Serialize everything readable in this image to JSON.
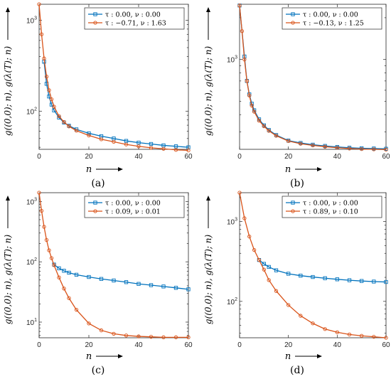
{
  "chart_data": [
    {
      "panel_label": "(a)",
      "type": "line",
      "x_scale": "linear",
      "y_scale": "log",
      "xlim": [
        0,
        60
      ],
      "ylim": [
        38,
        1500
      ],
      "xticks": [
        0,
        20,
        40,
        60
      ],
      "yticks": [
        {
          "value": 100,
          "label": "10^2"
        },
        {
          "value": 1000,
          "label": "10^3"
        }
      ],
      "xlabel": "n",
      "ylabel": "g((0,0); n), g(λ(T); n)",
      "legend_position": "top-right",
      "series": [
        {
          "name": "τ : 0.00, ν : 0.00",
          "color": "#0072BD",
          "marker": "square",
          "x": [
            2,
            3,
            4,
            5,
            6,
            8,
            10,
            12,
            15,
            20,
            25,
            30,
            35,
            40,
            45,
            50,
            55,
            60
          ],
          "y": [
            350,
            200,
            145,
            118,
            102,
            85,
            75,
            69,
            63,
            57,
            53,
            50,
            47,
            45,
            43.5,
            42,
            41,
            40
          ]
        },
        {
          "name": "τ : −0.71, ν : 1.63",
          "color": "#D95319",
          "marker": "circle",
          "x": [
            0,
            1,
            2,
            3,
            4,
            5,
            6,
            8,
            10,
            12,
            15,
            20,
            25,
            30,
            35,
            40,
            45,
            50,
            55,
            60
          ],
          "y": [
            1500,
            700,
            380,
            240,
            170,
            135,
            112,
            88,
            76,
            68,
            61,
            54,
            49,
            46,
            43,
            41,
            39.5,
            38.5,
            37.5,
            37
          ]
        }
      ]
    },
    {
      "panel_label": "(b)",
      "type": "line",
      "x_scale": "linear",
      "y_scale": "log",
      "xlim": [
        0,
        60
      ],
      "ylim": [
        225,
        2500
      ],
      "xticks": [
        0,
        20,
        40,
        60
      ],
      "yticks": [
        {
          "value": 1000,
          "label": "10^3"
        }
      ],
      "xlabel": "n",
      "ylabel": "g((0,0); n), g(λ(T); n)",
      "legend_position": "top-right",
      "series": [
        {
          "name": "τ : 0.00, ν : 0.00",
          "color": "#0072BD",
          "marker": "square",
          "x": [
            0,
            2,
            3,
            4,
            5,
            6,
            8,
            10,
            12,
            15,
            20,
            25,
            30,
            35,
            40,
            45,
            50,
            55,
            60
          ],
          "y": [
            2450,
            1050,
            700,
            560,
            480,
            430,
            370,
            335,
            310,
            285,
            260,
            250,
            243,
            238,
            234,
            231,
            229,
            228,
            227
          ]
        },
        {
          "name": "τ : −0.13, ν : 1.25",
          "color": "#D95319",
          "marker": "circle",
          "x": [
            0,
            1,
            2,
            3,
            4,
            5,
            6,
            8,
            10,
            12,
            15,
            20,
            25,
            30,
            35,
            40,
            45,
            50,
            55,
            60
          ],
          "y": [
            2450,
            1600,
            1000,
            700,
            550,
            465,
            420,
            362,
            330,
            306,
            282,
            258,
            247,
            240,
            235,
            231,
            228,
            226,
            225,
            224
          ]
        }
      ]
    },
    {
      "panel_label": "(c)",
      "type": "line",
      "x_scale": "linear",
      "y_scale": "log",
      "xlim": [
        0,
        60
      ],
      "ylim": [
        5.5,
        1400
      ],
      "xticks": [
        0,
        20,
        40,
        60
      ],
      "yticks": [
        {
          "value": 10,
          "label": "10^1"
        },
        {
          "value": 100,
          "label": "10^2"
        },
        {
          "value": 1000,
          "label": "10^3"
        }
      ],
      "xlabel": "n",
      "ylabel": "g((0,0); n), g(λ(T); n)",
      "legend_position": "top-right",
      "series": [
        {
          "name": "τ : 0.00, ν : 0.00",
          "color": "#0072BD",
          "marker": "square",
          "x": [
            6,
            8,
            10,
            12,
            15,
            20,
            25,
            30,
            35,
            40,
            45,
            50,
            55,
            60
          ],
          "y": [
            90,
            78,
            71,
            66,
            61,
            56,
            52,
            49,
            46,
            43,
            41,
            39,
            37,
            35
          ]
        },
        {
          "name": "τ : 0.09, ν : 0.01",
          "color": "#D95319",
          "marker": "circle",
          "x": [
            0,
            1,
            2,
            3,
            4,
            5,
            6,
            8,
            10,
            12,
            15,
            20,
            25,
            30,
            35,
            40,
            45,
            50,
            55,
            60
          ],
          "y": [
            1400,
            700,
            380,
            230,
            155,
            115,
            88,
            55,
            36,
            25,
            16,
            9.5,
            7.3,
            6.4,
            6.0,
            5.8,
            5.7,
            5.6,
            5.6,
            5.6
          ]
        }
      ]
    },
    {
      "panel_label": "(d)",
      "type": "line",
      "x_scale": "linear",
      "y_scale": "log",
      "xlim": [
        0,
        60
      ],
      "ylim": [
        35,
        2300
      ],
      "xticks": [
        0,
        20,
        40,
        60
      ],
      "yticks": [
        {
          "value": 100,
          "label": "10^2"
        },
        {
          "value": 1000,
          "label": "10^3"
        }
      ],
      "xlabel": "n",
      "ylabel": "g((0,0); n), g(λ(T); n)",
      "legend_position": "top-right",
      "series": [
        {
          "name": "τ : 0.00, ν : 0.00",
          "color": "#0072BD",
          "marker": "square",
          "x": [
            8,
            10,
            12,
            15,
            20,
            25,
            30,
            35,
            40,
            45,
            50,
            55,
            60
          ],
          "y": [
            330,
            295,
            270,
            245,
            222,
            210,
            202,
            195,
            189,
            184,
            180,
            177,
            175
          ]
        },
        {
          "name": "τ : 0.89, ν : 0.10",
          "color": "#D95319",
          "marker": "circle",
          "x": [
            0,
            2,
            4,
            6,
            8,
            10,
            12,
            15,
            20,
            25,
            30,
            35,
            40,
            45,
            50,
            55,
            60
          ],
          "y": [
            2300,
            1100,
            650,
            440,
            330,
            250,
            185,
            135,
            90,
            66,
            53,
            45,
            41,
            38.5,
            37,
            36,
            35
          ]
        }
      ]
    }
  ]
}
